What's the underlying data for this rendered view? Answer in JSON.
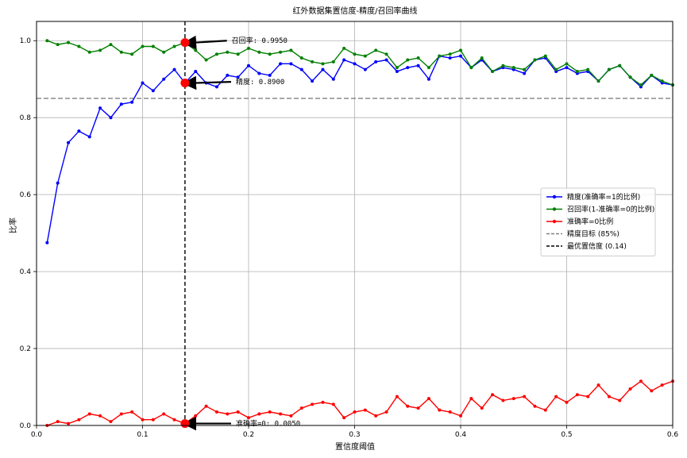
{
  "chart_data": {
    "type": "line",
    "title": "红外数据集置信度-精度/召回率曲线",
    "xlabel": "置信度阈值",
    "ylabel": "比率",
    "xlim": [
      0.0,
      0.6
    ],
    "ylim": [
      0.0,
      1.05
    ],
    "xticks": [
      "0.0",
      "0.1",
      "0.2",
      "0.3",
      "0.4",
      "0.5",
      "0.6"
    ],
    "yticks": [
      "0.0",
      "0.2",
      "0.4",
      "0.6",
      "0.8",
      "1.0"
    ],
    "grid": true,
    "legend_position": "right",
    "x": [
      0.01,
      0.02,
      0.03,
      0.04,
      0.05,
      0.06,
      0.07,
      0.08,
      0.09,
      0.1,
      0.11,
      0.12,
      0.13,
      0.14,
      0.15,
      0.16,
      0.17,
      0.18,
      0.19,
      0.2,
      0.21,
      0.22,
      0.23,
      0.24,
      0.25,
      0.26,
      0.27,
      0.28,
      0.29,
      0.3,
      0.31,
      0.32,
      0.33,
      0.34,
      0.35,
      0.36,
      0.37,
      0.38,
      0.39,
      0.4,
      0.41,
      0.42,
      0.43,
      0.44,
      0.45,
      0.46,
      0.47,
      0.48,
      0.49,
      0.5,
      0.51,
      0.52,
      0.53,
      0.54,
      0.55,
      0.56,
      0.57,
      0.58,
      0.59,
      0.6
    ],
    "series": [
      {
        "name": "精度(准确率=1的比例)",
        "color": "#0000ff",
        "values": [
          0.475,
          0.63,
          0.735,
          0.765,
          0.75,
          0.825,
          0.8,
          0.835,
          0.84,
          0.89,
          0.87,
          0.9,
          0.925,
          0.89,
          0.92,
          0.89,
          0.88,
          0.91,
          0.905,
          0.935,
          0.915,
          0.91,
          0.94,
          0.94,
          0.925,
          0.895,
          0.925,
          0.9,
          0.95,
          0.94,
          0.925,
          0.945,
          0.95,
          0.92,
          0.93,
          0.935,
          0.9,
          0.96,
          0.955,
          0.96,
          0.93,
          0.95,
          0.92,
          0.93,
          0.925,
          0.915,
          0.95,
          0.955,
          0.92,
          0.93,
          0.915,
          0.92,
          0.895,
          0.925,
          0.935,
          0.905,
          0.88,
          0.91,
          0.89,
          0.885
        ]
      },
      {
        "name": "召回率(1-准确率=0的比例)",
        "color": "#008000",
        "values": [
          1.0,
          0.99,
          0.995,
          0.985,
          0.97,
          0.975,
          0.99,
          0.97,
          0.965,
          0.985,
          0.985,
          0.97,
          0.985,
          0.995,
          0.975,
          0.95,
          0.965,
          0.97,
          0.965,
          0.98,
          0.97,
          0.965,
          0.97,
          0.975,
          0.955,
          0.945,
          0.94,
          0.945,
          0.98,
          0.965,
          0.96,
          0.975,
          0.965,
          0.93,
          0.95,
          0.955,
          0.93,
          0.96,
          0.965,
          0.975,
          0.93,
          0.955,
          0.92,
          0.935,
          0.93,
          0.925,
          0.95,
          0.96,
          0.925,
          0.94,
          0.92,
          0.925,
          0.895,
          0.925,
          0.935,
          0.905,
          0.885,
          0.91,
          0.895,
          0.885
        ]
      },
      {
        "name": "准确率=0比例",
        "color": "#ff0000",
        "values": [
          0.0,
          0.01,
          0.005,
          0.015,
          0.03,
          0.025,
          0.01,
          0.03,
          0.035,
          0.015,
          0.015,
          0.03,
          0.015,
          0.005,
          0.025,
          0.05,
          0.035,
          0.03,
          0.035,
          0.02,
          0.03,
          0.035,
          0.03,
          0.025,
          0.045,
          0.055,
          0.06,
          0.055,
          0.02,
          0.035,
          0.04,
          0.025,
          0.035,
          0.075,
          0.05,
          0.045,
          0.07,
          0.04,
          0.035,
          0.025,
          0.07,
          0.045,
          0.08,
          0.065,
          0.07,
          0.075,
          0.05,
          0.04,
          0.075,
          0.06,
          0.08,
          0.075,
          0.105,
          0.075,
          0.065,
          0.095,
          0.115,
          0.09,
          0.105,
          0.115
        ]
      }
    ],
    "reference_lines": [
      {
        "kind": "horizontal",
        "value": 0.85,
        "label": "精度目标 (85%)",
        "color": "#808080"
      },
      {
        "kind": "vertical",
        "value": 0.14,
        "label": "最优置信度 (0.14)",
        "color": "#000000"
      }
    ],
    "highlights": [
      {
        "x": 0.14,
        "y": 0.995,
        "label": "召回率: 0.9950"
      },
      {
        "x": 0.14,
        "y": 0.89,
        "label": "精度: 0.8900"
      },
      {
        "x": 0.14,
        "y": 0.005,
        "label": "准确率=0: 0.0050"
      }
    ]
  }
}
